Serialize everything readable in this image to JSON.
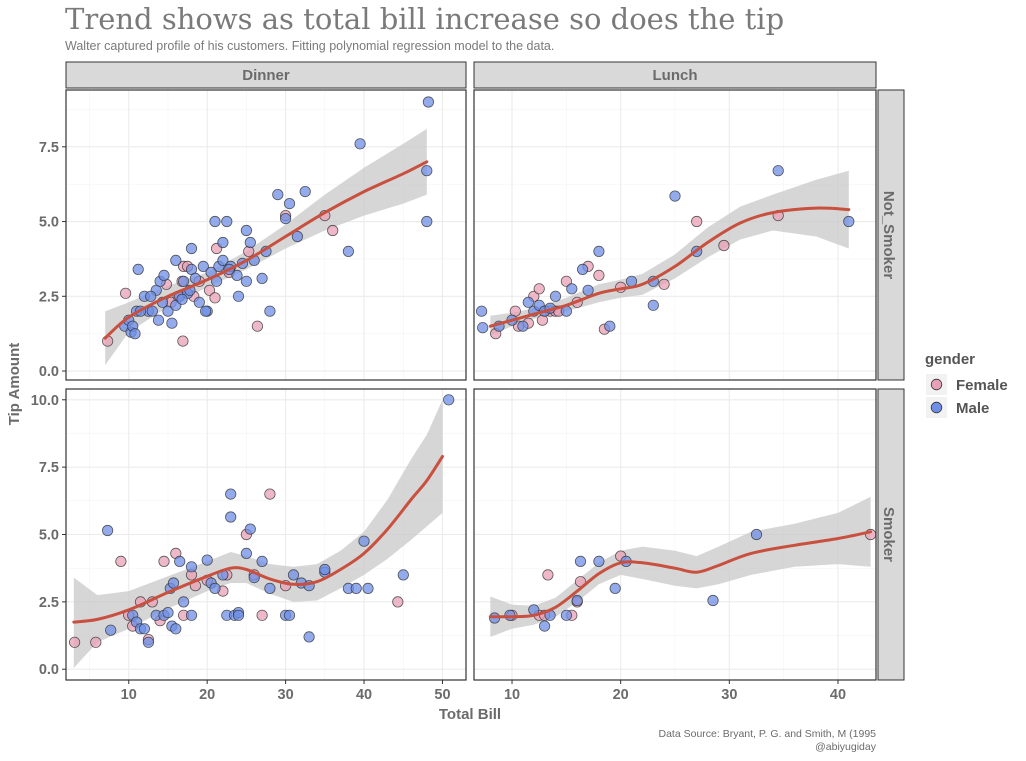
{
  "colors": {
    "female": "#e8a0b6",
    "male": "#6f8fe6",
    "fit_line": "#c9503e",
    "ribbon": "#c8c8c8",
    "strip": "#d9d9d9",
    "grid": "#ebebeb",
    "text": "#6b6b6b"
  },
  "chart_data": {
    "type": "scatter",
    "title": "Trend shows as total bill increase so does the tip",
    "subtitle": "Walter captured profile of his customers. Fitting polynomial regression model to the data.",
    "xlabel": "Total Bill",
    "ylabel": "Tip Amount",
    "caption_lines": [
      "Data Source: Bryant, P. G. and Smith, M (1995",
      "@abiyugiday"
    ],
    "legend": {
      "title": "gender",
      "position": "right",
      "entries": [
        "Female",
        "Male"
      ]
    },
    "col_facets": [
      "Dinner",
      "Lunch"
    ],
    "row_facets": [
      "Not_Smoker",
      "Smoker"
    ],
    "grid": true,
    "smoother": "polynomial regression with confidence band",
    "panels": [
      {
        "col": "Dinner",
        "row": "Not_Smoker",
        "xlim": [
          2,
          53
        ],
        "ylim": [
          -0.3,
          9.4
        ],
        "xticks": [
          10,
          20,
          30,
          40,
          50
        ],
        "yticks": [
          0,
          2.5,
          5,
          7.5
        ],
        "ytick_labels": [
          "0.0",
          "2.5",
          "5.0",
          "7.5"
        ],
        "female": [
          [
            7.3,
            1.0
          ],
          [
            9.6,
            2.6
          ],
          [
            14.8,
            2.9
          ],
          [
            16.9,
            1.0
          ],
          [
            17,
            3.5
          ],
          [
            17.5,
            3.5
          ],
          [
            15.4,
            2.3
          ],
          [
            16.8,
            3.0
          ],
          [
            18.3,
            2.5
          ],
          [
            19,
            3.0
          ],
          [
            20.3,
            2.7
          ],
          [
            21,
            2.45
          ],
          [
            21.2,
            4.1
          ],
          [
            22.8,
            3.3
          ],
          [
            25.3,
            4.0
          ],
          [
            26.4,
            1.5
          ],
          [
            30,
            5.2
          ],
          [
            35,
            5.2
          ],
          [
            36,
            4.7
          ],
          [
            16.3,
            2.5
          ]
        ],
        "male": [
          [
            9.5,
            1.5
          ],
          [
            10,
            1.7
          ],
          [
            10.3,
            1.3
          ],
          [
            11,
            2.0
          ],
          [
            11.2,
            3.4
          ],
          [
            12,
            2.5
          ],
          [
            12.5,
            2.0
          ],
          [
            13,
            2.0
          ],
          [
            13.5,
            2.7
          ],
          [
            14,
            3.0
          ],
          [
            14.5,
            3.2
          ],
          [
            15,
            2.0
          ],
          [
            15.5,
            1.6
          ],
          [
            16,
            3.7
          ],
          [
            16,
            2.2
          ],
          [
            16.5,
            2.5
          ],
          [
            17,
            3.0
          ],
          [
            17.5,
            2.6
          ],
          [
            18,
            3.4
          ],
          [
            18,
            4.1
          ],
          [
            18.5,
            3.1
          ],
          [
            19,
            2.3
          ],
          [
            19.5,
            3.5
          ],
          [
            20,
            2.0
          ],
          [
            20.5,
            3.3
          ],
          [
            21,
            5.0
          ],
          [
            21.5,
            3.5
          ],
          [
            22,
            4.3
          ],
          [
            22,
            3.7
          ],
          [
            22.5,
            5.0
          ],
          [
            23,
            3.5
          ],
          [
            24,
            2.5
          ],
          [
            24.5,
            3.6
          ],
          [
            25,
            4.7
          ],
          [
            25,
            3.0
          ],
          [
            25.5,
            4.3
          ],
          [
            26,
            3.7
          ],
          [
            27,
            3.1
          ],
          [
            28,
            2.0
          ],
          [
            29,
            5.9
          ],
          [
            30,
            5.1
          ],
          [
            30.5,
            5.6
          ],
          [
            31.5,
            4.5
          ],
          [
            32.5,
            6.0
          ],
          [
            38,
            4.0
          ],
          [
            39.5,
            7.6
          ],
          [
            48,
            5.0
          ],
          [
            48,
            6.7
          ],
          [
            48.2,
            9.0
          ],
          [
            11.5,
            2.0
          ],
          [
            12.8,
            2.5
          ],
          [
            13.8,
            1.7
          ],
          [
            14.3,
            2.3
          ],
          [
            10.5,
            1.5
          ],
          [
            17.8,
            2.7
          ],
          [
            19.8,
            2.0
          ],
          [
            21.2,
            3.0
          ],
          [
            23.8,
            3.2
          ],
          [
            27.5,
            4.0
          ],
          [
            10.8,
            1.25
          ],
          [
            16.8,
            2.4
          ],
          [
            22.8,
            3.4
          ]
        ],
        "fit_x": [
          7,
          10,
          15,
          20,
          25,
          30,
          35,
          40,
          45,
          48
        ],
        "fit_y": [
          1.1,
          1.8,
          2.5,
          3.05,
          3.7,
          4.5,
          5.3,
          6.0,
          6.6,
          7.0
        ],
        "band_lo": [
          0.2,
          1.3,
          2.15,
          2.8,
          3.4,
          4.1,
          4.7,
          5.2,
          5.6,
          5.9
        ],
        "band_hi": [
          2.0,
          2.3,
          2.85,
          3.3,
          4.0,
          4.9,
          5.9,
          6.8,
          7.6,
          8.1
        ]
      },
      {
        "col": "Lunch",
        "row": "Not_Smoker",
        "xlim": [
          6.5,
          43.5
        ],
        "ylim": [
          -0.3,
          9.4
        ],
        "xticks": [
          10,
          20,
          30,
          40
        ],
        "yticks": [
          0,
          2.5,
          5,
          7.5
        ],
        "ytick_labels": [
          "0.0",
          "2.5",
          "5.0",
          "7.5"
        ],
        "female": [
          [
            8.5,
            1.25
          ],
          [
            10.3,
            2.0
          ],
          [
            10.6,
            1.5
          ],
          [
            11.5,
            1.6
          ],
          [
            12,
            2.5
          ],
          [
            12.5,
            2.75
          ],
          [
            12.8,
            1.7
          ],
          [
            13.5,
            2.0
          ],
          [
            14,
            2.0
          ],
          [
            15,
            3.0
          ],
          [
            16,
            2.3
          ],
          [
            17,
            3.5
          ],
          [
            18,
            3.2
          ],
          [
            18.5,
            1.4
          ],
          [
            20,
            2.8
          ],
          [
            24,
            2.9
          ],
          [
            27,
            5.0
          ],
          [
            29.5,
            4.2
          ],
          [
            34.5,
            5.2
          ],
          [
            14.3,
            2.0
          ]
        ],
        "male": [
          [
            7.2,
            2.0
          ],
          [
            7.3,
            1.45
          ],
          [
            8.8,
            1.5
          ],
          [
            10,
            1.7
          ],
          [
            11,
            1.5
          ],
          [
            12,
            2.0
          ],
          [
            12.5,
            2.2
          ],
          [
            13,
            2.0
          ],
          [
            13.5,
            2.1
          ],
          [
            14,
            2.5
          ],
          [
            15,
            2.0
          ],
          [
            15.5,
            2.75
          ],
          [
            16.5,
            3.4
          ],
          [
            17,
            2.7
          ],
          [
            18,
            4.0
          ],
          [
            19,
            1.5
          ],
          [
            21,
            3.0
          ],
          [
            23,
            3.0
          ],
          [
            23,
            2.2
          ],
          [
            25,
            5.85
          ],
          [
            27,
            4.0
          ],
          [
            34.5,
            6.7
          ],
          [
            41,
            5.0
          ],
          [
            11.5,
            2.3
          ]
        ],
        "fit_x": [
          8,
          10,
          12,
          15,
          18,
          20,
          22,
          25,
          28,
          31,
          34,
          38,
          41
        ],
        "fit_y": [
          1.5,
          1.7,
          1.9,
          2.2,
          2.6,
          2.75,
          2.9,
          3.5,
          4.3,
          4.95,
          5.3,
          5.45,
          5.4
        ],
        "band_lo": [
          1.2,
          1.5,
          1.75,
          2.0,
          2.3,
          2.45,
          2.55,
          3.1,
          3.8,
          4.4,
          4.7,
          4.5,
          4.1
        ],
        "band_hi": [
          1.85,
          1.95,
          2.1,
          2.45,
          2.9,
          3.05,
          3.25,
          3.9,
          4.8,
          5.5,
          5.9,
          6.4,
          6.7
        ]
      },
      {
        "col": "Dinner",
        "row": "Smoker",
        "xlim": [
          2,
          53
        ],
        "ylim": [
          -0.4,
          10.4
        ],
        "xticks": [
          10,
          20,
          30,
          40,
          50
        ],
        "yticks": [
          0,
          2.5,
          5,
          7.5,
          10
        ],
        "ytick_labels": [
          "0.0",
          "2.5",
          "5.0",
          "7.5",
          "10.0"
        ],
        "female": [
          [
            3.1,
            1.0
          ],
          [
            5.8,
            1.0
          ],
          [
            9,
            4.0
          ],
          [
            10,
            2.0
          ],
          [
            10.5,
            1.6
          ],
          [
            11.5,
            2.5
          ],
          [
            12.5,
            1.1
          ],
          [
            13,
            2.5
          ],
          [
            14.5,
            4.0
          ],
          [
            14,
            1.8
          ],
          [
            16,
            4.3
          ],
          [
            17,
            2.0
          ],
          [
            18,
            3.5
          ],
          [
            20,
            3.3
          ],
          [
            22,
            2.9
          ],
          [
            22.5,
            3.5
          ],
          [
            25,
            5.0
          ],
          [
            26,
            3.5
          ],
          [
            27,
            2.0
          ],
          [
            28,
            6.5
          ],
          [
            30,
            3.1
          ],
          [
            44.3,
            2.5
          ],
          [
            18.5,
            3.1
          ]
        ],
        "male": [
          [
            7.3,
            5.15
          ],
          [
            7.7,
            1.45
          ],
          [
            10.5,
            2.0
          ],
          [
            11,
            1.75
          ],
          [
            11.5,
            1.5
          ],
          [
            12,
            1.5
          ],
          [
            12.5,
            1.0
          ],
          [
            13.5,
            2.0
          ],
          [
            14.5,
            2.0
          ],
          [
            15,
            2.1
          ],
          [
            15.3,
            3.0
          ],
          [
            15.5,
            1.6
          ],
          [
            15.7,
            3.2
          ],
          [
            16,
            1.5
          ],
          [
            16.5,
            4.0
          ],
          [
            17,
            2.5
          ],
          [
            18,
            3.8
          ],
          [
            18,
            2.0
          ],
          [
            20,
            4.05
          ],
          [
            20.5,
            3.2
          ],
          [
            21,
            3.0
          ],
          [
            22,
            3.5
          ],
          [
            22.5,
            2.0
          ],
          [
            23,
            6.5
          ],
          [
            23,
            5.65
          ],
          [
            23.5,
            2.0
          ],
          [
            24,
            2.1
          ],
          [
            24,
            2.0
          ],
          [
            25,
            4.3
          ],
          [
            25.5,
            5.2
          ],
          [
            26,
            3.4
          ],
          [
            27,
            4.0
          ],
          [
            28,
            3.0
          ],
          [
            30,
            2.0
          ],
          [
            30.5,
            2.0
          ],
          [
            31,
            3.5
          ],
          [
            32,
            3.2
          ],
          [
            33,
            1.2
          ],
          [
            33,
            3.1
          ],
          [
            35,
            3.6
          ],
          [
            35,
            3.7
          ],
          [
            38,
            3.0
          ],
          [
            39,
            3.0
          ],
          [
            40,
            4.75
          ],
          [
            40.5,
            3.0
          ],
          [
            45,
            3.5
          ],
          [
            50.8,
            10.0
          ]
        ],
        "fit_x": [
          3,
          6,
          10,
          15,
          20,
          23,
          25,
          28,
          31,
          34,
          37,
          40,
          43,
          46,
          48,
          50
        ],
        "fit_y": [
          1.75,
          1.85,
          2.2,
          2.85,
          3.45,
          3.75,
          3.7,
          3.35,
          3.15,
          3.25,
          3.7,
          4.3,
          5.2,
          6.3,
          7.0,
          7.9
        ],
        "band_lo": [
          0.05,
          1.0,
          1.5,
          2.25,
          2.9,
          3.2,
          3.2,
          2.8,
          2.5,
          2.55,
          3.0,
          3.5,
          4.1,
          4.8,
          5.3,
          5.8
        ],
        "band_hi": [
          3.4,
          2.75,
          2.9,
          3.45,
          4.0,
          4.35,
          4.2,
          3.9,
          3.8,
          3.9,
          4.4,
          5.1,
          6.3,
          7.8,
          8.7,
          10.0
        ]
      },
      {
        "col": "Lunch",
        "row": "Smoker",
        "xlim": [
          6.5,
          43.5
        ],
        "ylim": [
          -0.4,
          10.4
        ],
        "xticks": [
          10,
          20,
          30,
          40
        ],
        "yticks": [
          0,
          2.5,
          5,
          7.5,
          10
        ],
        "ytick_labels": [
          "0.0",
          "2.5",
          "5.0",
          "7.5",
          "10.0"
        ],
        "female": [
          [
            10,
            2.0
          ],
          [
            12.5,
            2.0
          ],
          [
            13.3,
            3.5
          ],
          [
            13,
            2.0
          ],
          [
            15.5,
            2.0
          ],
          [
            16,
            2.5
          ],
          [
            16.3,
            3.25
          ],
          [
            20,
            4.2
          ],
          [
            43,
            5.0
          ]
        ],
        "male": [
          [
            8.4,
            1.9
          ],
          [
            9.8,
            2.0
          ],
          [
            12,
            2.2
          ],
          [
            13,
            1.6
          ],
          [
            13.5,
            2.0
          ],
          [
            15,
            2.0
          ],
          [
            16.3,
            4.0
          ],
          [
            16,
            2.55
          ],
          [
            18,
            4.0
          ],
          [
            19.5,
            3.0
          ],
          [
            20.5,
            4.0
          ],
          [
            28.5,
            2.55
          ],
          [
            32.5,
            5.0
          ]
        ],
        "fit_x": [
          8,
          10,
          12,
          14,
          16,
          18,
          20,
          22,
          25,
          27,
          29,
          32,
          36,
          40,
          43
        ],
        "fit_y": [
          1.95,
          1.95,
          2.0,
          2.3,
          2.9,
          3.55,
          3.95,
          3.95,
          3.75,
          3.6,
          3.85,
          4.3,
          4.6,
          4.85,
          5.1
        ],
        "band_lo": [
          1.2,
          1.5,
          1.65,
          1.95,
          2.5,
          3.15,
          3.5,
          3.35,
          3.1,
          3.0,
          3.15,
          3.5,
          3.8,
          3.9,
          3.8
        ],
        "band_hi": [
          2.7,
          2.4,
          2.35,
          2.65,
          3.3,
          3.95,
          4.4,
          4.55,
          4.4,
          4.2,
          4.55,
          5.1,
          5.4,
          5.8,
          6.4
        ]
      }
    ]
  }
}
